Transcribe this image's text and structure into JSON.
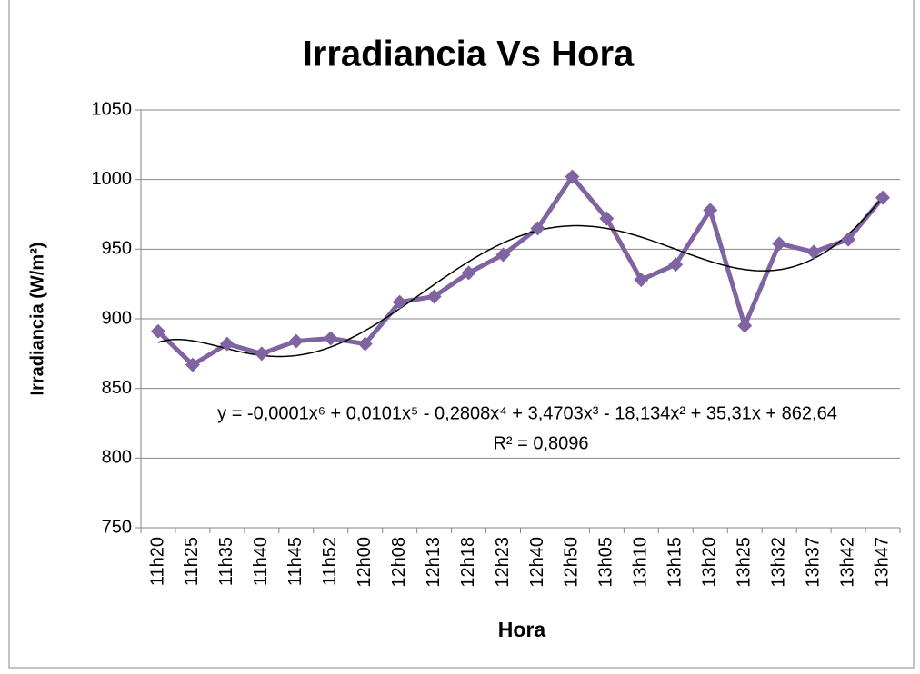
{
  "chart_data": {
    "type": "line",
    "title": "Irradiancia Vs Hora",
    "x_label": "Hora",
    "y_label": "Irradiancia (W/m²)",
    "categories": [
      "11h20",
      "11h25",
      "11h35",
      "11h40",
      "11h45",
      "11h52",
      "12h00",
      "12h08",
      "12h13",
      "12h18",
      "12h23",
      "12h40",
      "12h50",
      "13h05",
      "13h10",
      "13h15",
      "13h20",
      "13h25",
      "13h32",
      "13h37",
      "13h42",
      "13h47"
    ],
    "series": [
      {
        "name": "Irradiancia",
        "color": "#8064a2",
        "values": [
          891,
          867,
          882,
          875,
          884,
          886,
          882,
          912,
          916,
          933,
          946,
          965,
          1002,
          972,
          928,
          939,
          978,
          895,
          954,
          948,
          957,
          987
        ]
      }
    ],
    "trendline": {
      "type": "polynomial",
      "order": 6,
      "color": "#000000",
      "equation": "y = -0,0001x⁶ + 0,0101x⁵ - 0,2808x⁴ + 3,4703x³ - 18,134x² + 35,31x + 862,64",
      "r_squared": "R² = 0,8096"
    },
    "ylim": [
      750,
      1050
    ],
    "yticks": [
      750,
      800,
      850,
      900,
      950,
      1000,
      1050
    ],
    "grid": true
  }
}
